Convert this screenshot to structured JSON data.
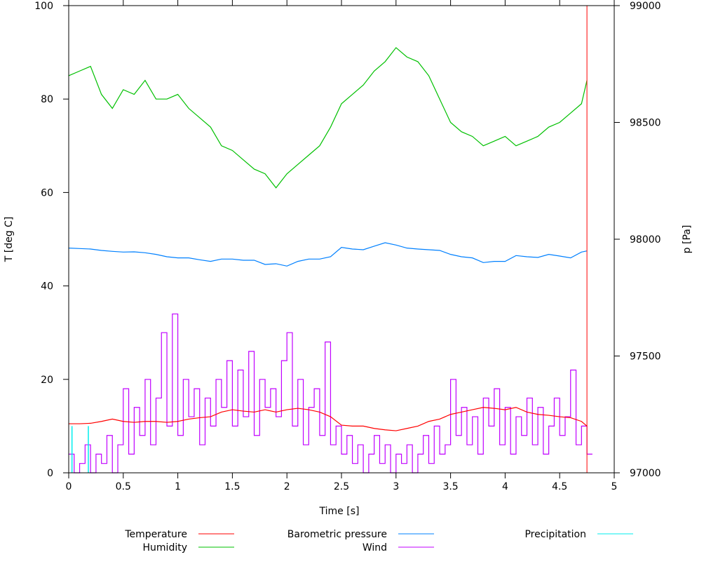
{
  "chart_data": {
    "type": "line",
    "xlabel": "Time [s]",
    "ylabel": "T [deg C]",
    "y2label": "p [Pa]",
    "xlim": [
      0,
      5
    ],
    "ylim": [
      0,
      100
    ],
    "y2lim": [
      97000,
      99000
    ],
    "xticks": [
      "0",
      "0.5",
      "1",
      "1.5",
      "2",
      "2.5",
      "3",
      "3.5",
      "4",
      "4.5",
      "5"
    ],
    "yticks": [
      "0",
      "20",
      "40",
      "60",
      "80",
      "100"
    ],
    "y2ticks": [
      "97000",
      "97500",
      "98000",
      "98500",
      "99000"
    ],
    "grid": false,
    "legend_position": "bottom",
    "marker_time": 4.75,
    "marker_color": "#ff0000",
    "series": [
      {
        "name": "Temperature",
        "axis": "y",
        "color": "#ff0000",
        "step": 0.1,
        "values": [
          10.5,
          10.5,
          10.6,
          11,
          11.5,
          11,
          10.8,
          11,
          11,
          10.8,
          11,
          11.5,
          11.8,
          12,
          13,
          13.5,
          13.2,
          13,
          13.5,
          13,
          13.5,
          13.8,
          13.5,
          13,
          12,
          10.2,
          10,
          10,
          9.5,
          9.2,
          9,
          9.5,
          10,
          11,
          11.5,
          12.5,
          13,
          13.5,
          14,
          13.8,
          13.5,
          14,
          13,
          12.5,
          12.3,
          12,
          11.8,
          11,
          10
        ]
      },
      {
        "name": "Humidity",
        "axis": "y",
        "color": "#00c000",
        "step": 0.1,
        "values": [
          85,
          86,
          87,
          81,
          78,
          82,
          81,
          84,
          80,
          80,
          81,
          78,
          76,
          74,
          70,
          69,
          67,
          65,
          64,
          61,
          64,
          66,
          68,
          70,
          74,
          79,
          81,
          83,
          86,
          88,
          91,
          89,
          88,
          85,
          80,
          75,
          73,
          72,
          70,
          71,
          72,
          70,
          71,
          72,
          74,
          75,
          77,
          79,
          84
        ]
      },
      {
        "name": "Barometric pressure",
        "axis": "y2",
        "color": "#0080ff",
        "step": 0.1,
        "values": [
          97962,
          97960,
          97958,
          97952,
          97948,
          97945,
          97946,
          97942,
          97935,
          97925,
          97920,
          97920,
          97912,
          97905,
          97915,
          97915,
          97910,
          97910,
          97892,
          97895,
          97885,
          97905,
          97915,
          97915,
          97925,
          97965,
          97958,
          97955,
          97970,
          97985,
          97975,
          97962,
          97958,
          97955,
          97952,
          97935,
          97925,
          97920,
          97900,
          97905,
          97905,
          97930,
          97925,
          97922,
          97935,
          97928,
          97920,
          97945,
          97950
        ]
      },
      {
        "name": "Wind",
        "axis": "y",
        "color": "#c000ff",
        "step": 0.05,
        "values": [
          4,
          0,
          2,
          6,
          0,
          4,
          2,
          8,
          0,
          6,
          18,
          4,
          14,
          8,
          20,
          6,
          16,
          30,
          10,
          34,
          8,
          20,
          12,
          18,
          6,
          16,
          10,
          20,
          14,
          24,
          10,
          22,
          12,
          26,
          8,
          20,
          14,
          18,
          12,
          24,
          30,
          10,
          20,
          6,
          14,
          18,
          8,
          28,
          6,
          10,
          4,
          8,
          2,
          6,
          0,
          4,
          8,
          2,
          6,
          0,
          4,
          2,
          6,
          0,
          4,
          8,
          2,
          10,
          4,
          6,
          20,
          8,
          14,
          6,
          12,
          4,
          16,
          10,
          18,
          6,
          14,
          4,
          12,
          8,
          16,
          6,
          14,
          4,
          10,
          16,
          8,
          12,
          22,
          6,
          10,
          4
        ]
      },
      {
        "name": "Precipitation",
        "axis": "y",
        "color": "#00eeee",
        "x": [
          0.03,
          0.18
        ],
        "values": [
          10,
          10
        ]
      }
    ]
  }
}
